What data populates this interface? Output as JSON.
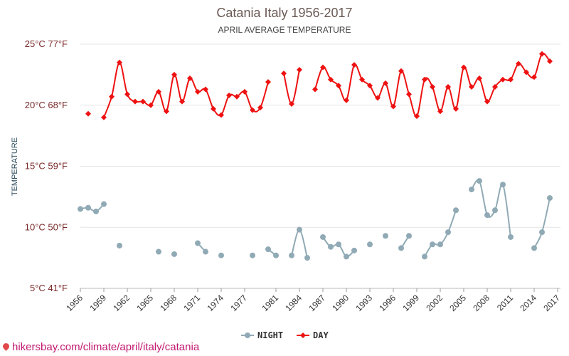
{
  "chart_data": {
    "type": "line",
    "title": "Catania Italy 1956-2017",
    "subtitle": "APRIL AVERAGE TEMPERATURE",
    "ylabel": "TEMPERATURE",
    "ylim": [
      5,
      25
    ],
    "y_ticks": [
      {
        "value": 25,
        "label": "25°C 77°F"
      },
      {
        "value": 20,
        "label": "20°C 68°F"
      },
      {
        "value": 15,
        "label": "15°C 59°F"
      },
      {
        "value": 10,
        "label": "10°C 50°F"
      },
      {
        "value": 5,
        "label": "5°C 41°F"
      }
    ],
    "x_ticks": [
      "1956",
      "1959",
      "1962",
      "1965",
      "1968",
      "1971",
      "1974",
      "1977",
      "1981",
      "1984",
      "1987",
      "1990",
      "1993",
      "1996",
      "1999",
      "2002",
      "2005",
      "2008",
      "2011",
      "2014",
      "2017"
    ],
    "x": [
      1956,
      1957,
      1958,
      1959,
      1960,
      1961,
      1962,
      1963,
      1964,
      1965,
      1966,
      1967,
      1968,
      1969,
      1970,
      1971,
      1972,
      1973,
      1974,
      1975,
      1976,
      1977,
      1978,
      1979,
      1980,
      1981,
      1982,
      1983,
      1984,
      1985,
      1986,
      1987,
      1988,
      1989,
      1990,
      1991,
      1992,
      1993,
      1994,
      1995,
      1996,
      1997,
      1998,
      1999,
      2000,
      2001,
      2002,
      2003,
      2004,
      2005,
      2006,
      2007,
      2008,
      2009,
      2010,
      2011,
      2012,
      2013,
      2014,
      2015,
      2016,
      2017
    ],
    "grid": true,
    "legend_position": "bottom-center",
    "series": [
      {
        "name": "DAY",
        "color": "#ee1111",
        "marker": "diamond",
        "values": [
          null,
          19.3,
          null,
          19.0,
          20.7,
          23.5,
          20.9,
          20.3,
          20.3,
          20.0,
          21.1,
          19.5,
          22.5,
          20.3,
          22.2,
          21.1,
          21.3,
          19.7,
          19.2,
          20.8,
          20.7,
          21.1,
          19.6,
          19.8,
          21.9,
          null,
          22.6,
          20.1,
          22.9,
          null,
          21.3,
          23.1,
          22.1,
          21.6,
          20.4,
          23.3,
          22.1,
          21.6,
          20.6,
          21.8,
          19.9,
          22.8,
          20.9,
          19.1,
          22.1,
          21.5,
          19.5,
          21.5,
          19.7,
          23.1,
          21.5,
          22.2,
          20.3,
          21.5,
          22.1,
          22.1,
          23.4,
          22.7,
          22.3,
          24.2,
          23.6,
          null
        ]
      },
      {
        "name": "NIGHT",
        "color": "#90aab5",
        "marker": "circle",
        "values": [
          11.5,
          11.6,
          11.3,
          11.9,
          null,
          8.5,
          null,
          null,
          null,
          null,
          8.0,
          null,
          7.8,
          null,
          null,
          8.7,
          8.0,
          null,
          7.7,
          null,
          null,
          null,
          7.7,
          null,
          8.2,
          7.7,
          null,
          7.7,
          9.8,
          7.5,
          null,
          9.2,
          8.4,
          8.6,
          7.6,
          8.1,
          null,
          8.6,
          null,
          9.3,
          null,
          8.3,
          9.3,
          null,
          7.6,
          8.6,
          8.6,
          9.6,
          11.4,
          null,
          13.1,
          13.8,
          11.0,
          11.4,
          13.5,
          9.2,
          null,
          null,
          8.3,
          9.6,
          12.4,
          null
        ]
      }
    ],
    "legend": [
      {
        "name": "NIGHT",
        "color": "#90aab5",
        "marker": "circle"
      },
      {
        "name": "DAY",
        "color": "#ee1111",
        "marker": "diamond"
      }
    ]
  },
  "footer": {
    "text": "hikersbay.com/climate/april/italy/catania",
    "icon": "location-pin-icon"
  }
}
